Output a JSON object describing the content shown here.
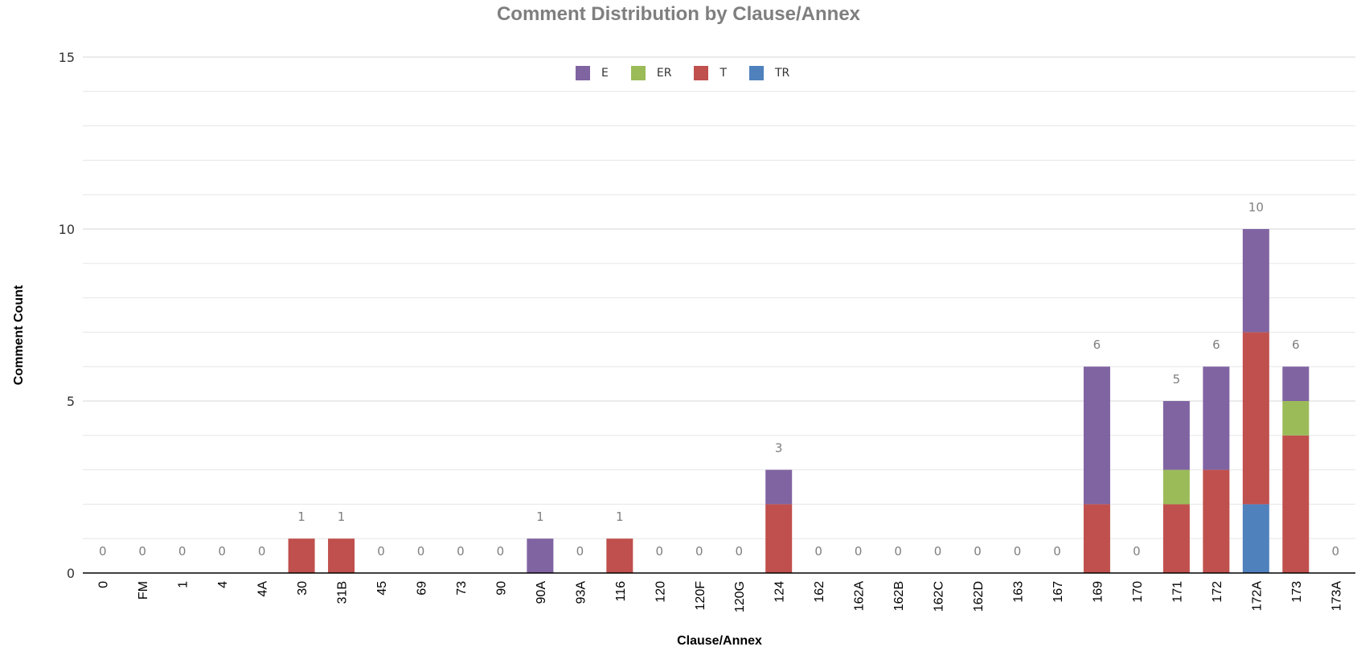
{
  "chart_data": {
    "type": "bar",
    "stacked": true,
    "title": "Comment Distribution by Clause/Annex",
    "xlabel": "Clause/Annex",
    "ylabel": "Comment Count",
    "ylim": [
      0,
      15
    ],
    "yticks": [
      "0",
      "5",
      "10",
      "15"
    ],
    "grid": true,
    "legend_position": "top-center",
    "categories": [
      "0",
      "FM",
      "1",
      "4",
      "4A",
      "30",
      "31B",
      "45",
      "69",
      "73",
      "90",
      "90A",
      "93A",
      "116",
      "120",
      "120F",
      "120G",
      "124",
      "162",
      "162A",
      "162B",
      "162C",
      "162D",
      "163",
      "167",
      "169",
      "170",
      "171",
      "172",
      "172A",
      "173",
      "173A"
    ],
    "series": [
      {
        "name": "TR",
        "color": "#4f81bd",
        "values": [
          0,
          0,
          0,
          0,
          0,
          0,
          0,
          0,
          0,
          0,
          0,
          0,
          0,
          0,
          0,
          0,
          0,
          0,
          0,
          0,
          0,
          0,
          0,
          0,
          0,
          0,
          0,
          0,
          0,
          2,
          0,
          0
        ]
      },
      {
        "name": "T",
        "color": "#c0504d",
        "values": [
          0,
          0,
          0,
          0,
          0,
          1,
          1,
          0,
          0,
          0,
          0,
          0,
          0,
          1,
          0,
          0,
          0,
          2,
          0,
          0,
          0,
          0,
          0,
          0,
          0,
          2,
          0,
          2,
          3,
          5,
          4,
          0
        ]
      },
      {
        "name": "ER",
        "color": "#9bbb59",
        "values": [
          0,
          0,
          0,
          0,
          0,
          0,
          0,
          0,
          0,
          0,
          0,
          0,
          0,
          0,
          0,
          0,
          0,
          0,
          0,
          0,
          0,
          0,
          0,
          0,
          0,
          0,
          0,
          1,
          0,
          0,
          1,
          0
        ]
      },
      {
        "name": "E",
        "color": "#8064a2",
        "values": [
          0,
          0,
          0,
          0,
          0,
          0,
          0,
          0,
          0,
          0,
          0,
          1,
          0,
          0,
          0,
          0,
          0,
          1,
          0,
          0,
          0,
          0,
          0,
          0,
          0,
          4,
          0,
          2,
          3,
          3,
          1,
          0
        ]
      }
    ],
    "totals": [
      "0",
      "0",
      "0",
      "0",
      "0",
      "1",
      "1",
      "0",
      "0",
      "0",
      "0",
      "1",
      "0",
      "1",
      "0",
      "0",
      "0",
      "3",
      "0",
      "0",
      "0",
      "0",
      "0",
      "0",
      "0",
      "6",
      "0",
      "5",
      "6",
      "10",
      "6",
      "0"
    ],
    "legend": [
      {
        "name": "E",
        "color": "#8064a2"
      },
      {
        "name": "ER",
        "color": "#9bbb59"
      },
      {
        "name": "T",
        "color": "#c0504d"
      },
      {
        "name": "TR",
        "color": "#4f81bd"
      }
    ]
  }
}
